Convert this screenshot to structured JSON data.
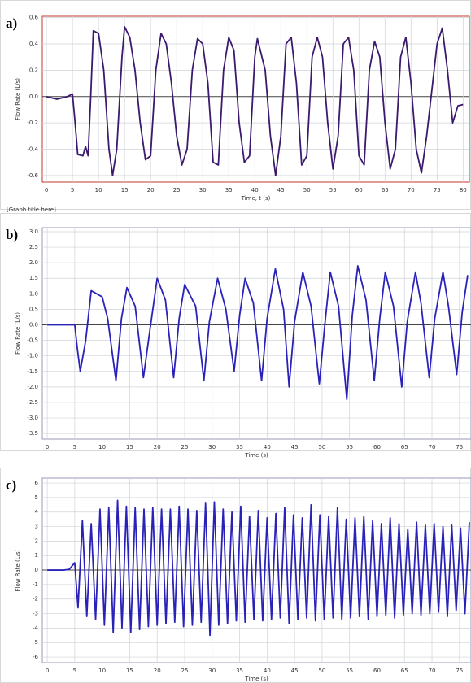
{
  "chart_data": [
    {
      "type": "line",
      "label": "a)",
      "xlabel": "Time, t (s)",
      "ylabel": "Flow Rate (L/s)",
      "footnote": "[Graph title here]",
      "xlim": [
        -0.8,
        81.2
      ],
      "ylim": [
        -0.65,
        0.61
      ],
      "xticks": [
        0,
        5,
        10,
        15,
        20,
        25,
        30,
        35,
        40,
        45,
        50,
        55,
        60,
        65,
        70,
        75,
        80
      ],
      "yticks": [
        -0.6,
        -0.4,
        -0.2,
        {
          "value": 0,
          "label": "0.0"
        },
        0.2,
        0.4,
        0.6
      ],
      "grid": true,
      "border_color": "#c0392b",
      "series": [
        {
          "color": "#3b1a6e",
          "x": [
            0,
            1,
            2,
            3,
            4,
            5,
            5.5,
            6,
            7,
            7.5,
            8,
            8.5,
            9,
            10,
            11,
            12,
            12.7,
            13.5,
            14.5,
            15,
            16,
            17,
            18,
            19,
            20,
            21,
            22,
            23,
            24,
            25,
            26,
            27,
            28,
            29,
            30,
            31,
            32,
            33,
            34,
            35,
            36,
            37,
            38,
            39,
            40,
            40.5,
            42,
            43,
            44,
            45,
            46,
            47,
            48,
            49,
            50,
            51,
            52,
            53,
            54,
            55,
            56,
            57,
            58,
            59,
            60,
            61,
            62,
            63,
            64,
            65,
            66,
            67,
            68,
            69,
            70,
            71,
            72,
            73,
            75,
            76,
            77,
            78,
            79,
            80
          ],
          "values": [
            0,
            -0.01,
            -0.02,
            -0.01,
            0,
            0.02,
            -0.2,
            -0.44,
            -0.45,
            -0.38,
            -0.45,
            0,
            0.5,
            0.48,
            0.2,
            -0.4,
            -0.6,
            -0.4,
            0.3,
            0.53,
            0.45,
            0.2,
            -0.2,
            -0.48,
            -0.45,
            0.2,
            0.48,
            0.4,
            0.1,
            -0.3,
            -0.52,
            -0.4,
            0.2,
            0.44,
            0.4,
            0.1,
            -0.5,
            -0.52,
            0.2,
            0.45,
            0.35,
            -0.2,
            -0.5,
            -0.45,
            0.3,
            0.44,
            0.2,
            -0.3,
            -0.6,
            -0.3,
            0.4,
            0.45,
            0.1,
            -0.52,
            -0.45,
            0.3,
            0.45,
            0.3,
            -0.2,
            -0.55,
            -0.3,
            0.4,
            0.45,
            0.2,
            -0.45,
            -0.52,
            0.2,
            0.42,
            0.3,
            -0.2,
            -0.55,
            -0.4,
            0.3,
            0.45,
            0.1,
            -0.4,
            -0.58,
            -0.3,
            0.4,
            0.52,
            0.2,
            -0.2,
            -0.07,
            -0.06
          ]
        }
      ]
    },
    {
      "type": "line",
      "label": "b)",
      "xlabel": "Time (s)",
      "ylabel": "Flow Rate (L/s)",
      "xlim": [
        -0.9,
        77.1
      ],
      "ylim": [
        -3.68,
        3.13
      ],
      "xticks": [
        0,
        5,
        10,
        15,
        20,
        25,
        30,
        35,
        40,
        45,
        50,
        55,
        60,
        65,
        70,
        75
      ],
      "yticks": [
        -3.5,
        {
          "value": -3,
          "label": "-3.0"
        },
        -2.5,
        {
          "value": -2,
          "label": "-2.0"
        },
        -1.5,
        {
          "value": -1,
          "label": "-1.0"
        },
        -0.5,
        {
          "value": 0,
          "label": "0.0"
        },
        0.5,
        {
          "value": 1,
          "label": "1.0"
        },
        1.5,
        {
          "value": 2,
          "label": "2.0"
        },
        2.5,
        {
          "value": 3,
          "label": "3.0"
        }
      ],
      "grid": true,
      "border_color": "#9a9ab8",
      "series": [
        {
          "color": "#2a22b8",
          "x": [
            0,
            2,
            4,
            5,
            5.5,
            6,
            7,
            8,
            9,
            10,
            11,
            12.5,
            13.5,
            14.5,
            16,
            17.5,
            18.5,
            20,
            21.5,
            23,
            24,
            25,
            27,
            28.5,
            29.5,
            31,
            32.5,
            34,
            35,
            36,
            37.5,
            39,
            40,
            41.5,
            43,
            44,
            45,
            46.5,
            48,
            49.5,
            50.5,
            51.5,
            53,
            54.5,
            55.5,
            56.5,
            58,
            59.5,
            60.5,
            61.5,
            63,
            64.5,
            65.5,
            67,
            68,
            69.5,
            70.5,
            72,
            73,
            74.5,
            75.5,
            76.5
          ],
          "values": [
            0,
            0,
            0,
            0,
            -0.8,
            -1.5,
            -0.5,
            1.1,
            1.0,
            0.9,
            0.2,
            -1.8,
            0.2,
            1.2,
            0.6,
            -1.7,
            -0.4,
            1.5,
            0.8,
            -1.7,
            0.2,
            1.3,
            0.6,
            -1.8,
            0.1,
            1.5,
            0.5,
            -1.5,
            0.3,
            1.5,
            0.7,
            -1.8,
            0.2,
            1.8,
            0.5,
            -2.0,
            0.1,
            1.7,
            0.6,
            -1.9,
            0,
            1.7,
            0.6,
            -2.4,
            0.3,
            1.9,
            0.8,
            -1.8,
            0.2,
            1.7,
            0.6,
            -2.0,
            0.1,
            1.7,
            0.7,
            -1.7,
            0.2,
            1.7,
            0.6,
            -1.6,
            0.4,
            1.6
          ]
        }
      ]
    },
    {
      "type": "line",
      "label": "c)",
      "xlabel": "Time (s)",
      "ylabel": "Flow Rate (L/s)",
      "xlim": [
        -0.9,
        77.1
      ],
      "ylim": [
        -6.39,
        6.34
      ],
      "xticks": [
        0,
        5,
        10,
        15,
        20,
        25,
        30,
        35,
        40,
        45,
        50,
        55,
        60,
        65,
        70,
        75
      ],
      "yticks": [
        -6,
        -5,
        -4,
        -3,
        -2,
        -1,
        0,
        1,
        2,
        3,
        4,
        5,
        6
      ],
      "grid": true,
      "border_color": "#9a9ab8",
      "series": [
        {
          "color": "#2a22b8",
          "x": [
            0,
            1,
            2,
            3,
            4,
            5,
            5.6,
            6.4,
            7.2,
            8.0,
            8.8,
            9.6,
            10.4,
            11.2,
            12.0,
            12.8,
            13.6,
            14.4,
            15.2,
            16.0,
            16.8,
            17.6,
            18.4,
            19.2,
            20.0,
            20.8,
            21.6,
            22.4,
            23.2,
            24.0,
            24.8,
            25.6,
            26.4,
            27.2,
            28.0,
            28.8,
            29.6,
            30.4,
            31.2,
            32.0,
            32.8,
            33.6,
            34.4,
            35.2,
            36.0,
            36.8,
            37.6,
            38.4,
            39.2,
            40.0,
            40.8,
            41.6,
            42.4,
            43.2,
            44.0,
            44.8,
            45.6,
            46.4,
            47.2,
            48.0,
            48.8,
            49.6,
            50.4,
            51.2,
            52.0,
            52.8,
            53.6,
            54.4,
            55.2,
            56.0,
            56.8,
            57.6,
            58.4,
            59.2,
            60.0,
            60.8,
            61.6,
            62.4,
            63.2,
            64.0,
            64.8,
            65.6,
            66.4,
            67.2,
            68.0,
            68.8,
            69.6,
            70.4,
            71.2,
            72.0,
            72.8,
            73.6,
            74.4,
            75.2,
            76.0,
            76.8
          ],
          "values": [
            0,
            0,
            0,
            0,
            0.05,
            0.5,
            -2.6,
            3.4,
            -3.2,
            3.2,
            -3.4,
            4.2,
            -3.8,
            4.3,
            -4.3,
            4.8,
            -4.0,
            4.4,
            -4.3,
            4.3,
            -4.1,
            4.2,
            -3.9,
            4.3,
            -3.8,
            4.2,
            -3.7,
            4.2,
            -3.6,
            4.4,
            -3.9,
            4.2,
            -3.8,
            4.1,
            -3.6,
            4.6,
            -4.5,
            4.7,
            -3.8,
            4.2,
            -3.7,
            4.0,
            -3.5,
            4.4,
            -3.6,
            3.7,
            -3.4,
            4.1,
            -3.5,
            3.6,
            -3.4,
            3.9,
            -3.3,
            4.3,
            -3.7,
            3.8,
            -3.4,
            3.6,
            -3.3,
            4.5,
            -3.5,
            3.8,
            -3.4,
            3.7,
            -3.3,
            4.3,
            -3.4,
            3.5,
            -3.3,
            3.6,
            -3.2,
            3.7,
            -3.4,
            3.4,
            -3.2,
            3.2,
            -3.1,
            3.6,
            -3.3,
            3.2,
            -3.1,
            2.8,
            -3.0,
            3.3,
            -3.1,
            3.1,
            -3.0,
            3.2,
            -2.9,
            3.0,
            -3.2,
            3.1,
            -2.8,
            2.9,
            -3.0,
            3.3
          ]
        }
      ]
    }
  ]
}
